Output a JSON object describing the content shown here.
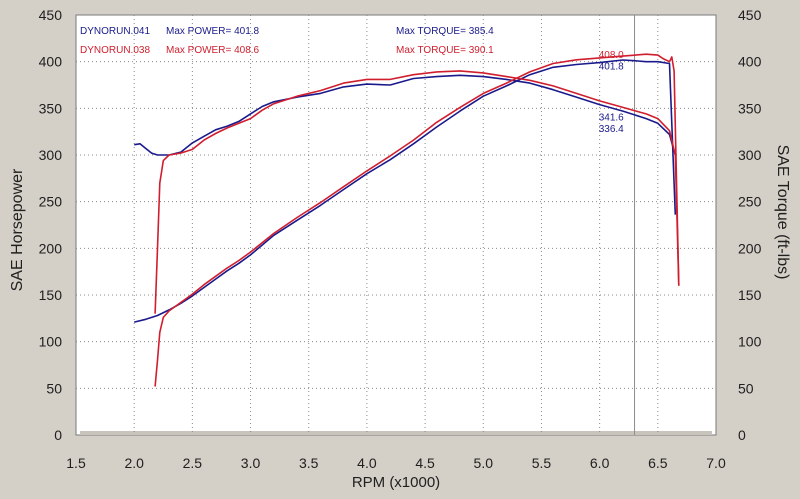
{
  "chart_data": {
    "type": "line",
    "title": "",
    "xlabel": "RPM (x1000)",
    "ylabel_left": "SAE Horsepower",
    "ylabel_right": "SAE Torque (ft-lbs)",
    "xlim": [
      1.5,
      7.0
    ],
    "ylim": [
      0,
      450
    ],
    "x_ticks": [
      1.5,
      2.0,
      2.5,
      3.0,
      3.5,
      4.0,
      4.5,
      5.0,
      5.5,
      6.0,
      6.5,
      7.0
    ],
    "x_tick_labels": [
      "1.5",
      "2.0",
      "2.5",
      "3.0",
      "3.5",
      "4.0",
      "4.5",
      "5.0",
      "5.5",
      "6.0",
      "6.5",
      "7.0"
    ],
    "y_ticks": [
      0,
      50,
      100,
      150,
      200,
      250,
      300,
      350,
      400,
      450
    ],
    "y_tick_labels": [
      "0",
      "50",
      "100",
      "150",
      "200",
      "250",
      "300",
      "350",
      "400",
      "450"
    ],
    "grid": true,
    "cursor_x": 6.3,
    "colors": {
      "run041": "#1a1a8c",
      "run038": "#d01e2e",
      "plot_bg": "#ffffff",
      "frame_bg": "#d4d0c8"
    },
    "legend": [
      {
        "run": "DYNORUN.041",
        "power_label": "Max POWER=",
        "power": "401.8",
        "torque_label": "Max TORQUE=",
        "torque": "385.4",
        "color": "#1a1a8c"
      },
      {
        "run": "DYNORUN.038",
        "power_label": "Max POWER=",
        "power": "408.6",
        "torque_label": "Max TORQUE=",
        "torque": "390.1",
        "color": "#d01e2e"
      }
    ],
    "annotations": [
      {
        "text": "408.0",
        "x": 6.25,
        "y": 408,
        "color": "#d01e2e"
      },
      {
        "text": "401.8",
        "x": 6.25,
        "y": 396,
        "color": "#1a1a8c"
      },
      {
        "text": "341.6",
        "x": 6.25,
        "y": 341,
        "color": "#1a1a8c"
      },
      {
        "text": "336.4",
        "x": 6.25,
        "y": 329,
        "color": "#1a1a8c"
      }
    ],
    "series": [
      {
        "name": "DYNORUN.041 Power",
        "color": "#1a1a8c",
        "x": [
          2.0,
          2.1,
          2.2,
          2.3,
          2.4,
          2.5,
          2.6,
          2.7,
          2.8,
          2.9,
          3.0,
          3.2,
          3.4,
          3.6,
          3.8,
          4.0,
          4.2,
          4.4,
          4.6,
          4.8,
          5.0,
          5.2,
          5.4,
          5.6,
          5.8,
          6.0,
          6.2,
          6.3,
          6.4,
          6.5,
          6.6,
          6.65
        ],
        "y": [
          121,
          124,
          128,
          134,
          141,
          149,
          158,
          167,
          176,
          184,
          193,
          214,
          230,
          246,
          263,
          280,
          295,
          312,
          330,
          347,
          363,
          374,
          386,
          394,
          397,
          399,
          401.8,
          401,
          400,
          400,
          398,
          236
        ]
      },
      {
        "name": "DYNORUN.041 Torque",
        "color": "#1a1a8c",
        "x": [
          2.0,
          2.05,
          2.1,
          2.15,
          2.2,
          2.3,
          2.4,
          2.5,
          2.6,
          2.7,
          2.8,
          2.9,
          3.0,
          3.1,
          3.2,
          3.4,
          3.6,
          3.8,
          4.0,
          4.2,
          4.4,
          4.6,
          4.8,
          5.0,
          5.2,
          5.4,
          5.6,
          5.8,
          6.0,
          6.2,
          6.4,
          6.5,
          6.6,
          6.65
        ],
        "y": [
          311,
          312,
          307,
          302,
          300,
          300,
          303,
          313,
          320,
          327,
          331,
          336,
          344,
          352,
          357,
          362,
          366,
          373,
          376,
          375,
          382,
          384,
          385.4,
          384,
          381,
          377,
          370,
          362,
          354,
          347,
          339,
          334,
          322,
          300
        ]
      },
      {
        "name": "DYNORUN.038 Power",
        "color": "#d01e2e",
        "x": [
          2.18,
          2.2,
          2.22,
          2.25,
          2.3,
          2.4,
          2.5,
          2.6,
          2.7,
          2.8,
          2.9,
          3.0,
          3.2,
          3.4,
          3.6,
          3.8,
          4.0,
          4.2,
          4.4,
          4.6,
          4.8,
          5.0,
          5.2,
          5.4,
          5.6,
          5.8,
          6.0,
          6.2,
          6.4,
          6.5,
          6.55,
          6.6,
          6.62,
          6.64,
          6.68
        ],
        "y": [
          52,
          80,
          110,
          126,
          133,
          142,
          151,
          161,
          170,
          179,
          187,
          196,
          216,
          233,
          249,
          266,
          283,
          299,
          316,
          335,
          351,
          366,
          377,
          389,
          398,
          402,
          404,
          406,
          408,
          407,
          403,
          400,
          405,
          390,
          160
        ]
      },
      {
        "name": "DYNORUN.038 Torque",
        "color": "#d01e2e",
        "x": [
          2.18,
          2.2,
          2.22,
          2.25,
          2.3,
          2.4,
          2.5,
          2.6,
          2.7,
          2.8,
          2.9,
          3.0,
          3.1,
          3.2,
          3.4,
          3.6,
          3.8,
          4.0,
          4.2,
          4.4,
          4.6,
          4.8,
          5.0,
          5.2,
          5.4,
          5.6,
          5.8,
          6.0,
          6.2,
          6.4,
          6.5,
          6.6,
          6.65,
          6.68
        ],
        "y": [
          130,
          200,
          270,
          294,
          300,
          302,
          306,
          316,
          323,
          329,
          334,
          339,
          348,
          355,
          363,
          369,
          377,
          381,
          381,
          386,
          389,
          390.1,
          388,
          384,
          380,
          374,
          366,
          358,
          351,
          344,
          339,
          326,
          300,
          160
        ]
      }
    ]
  }
}
